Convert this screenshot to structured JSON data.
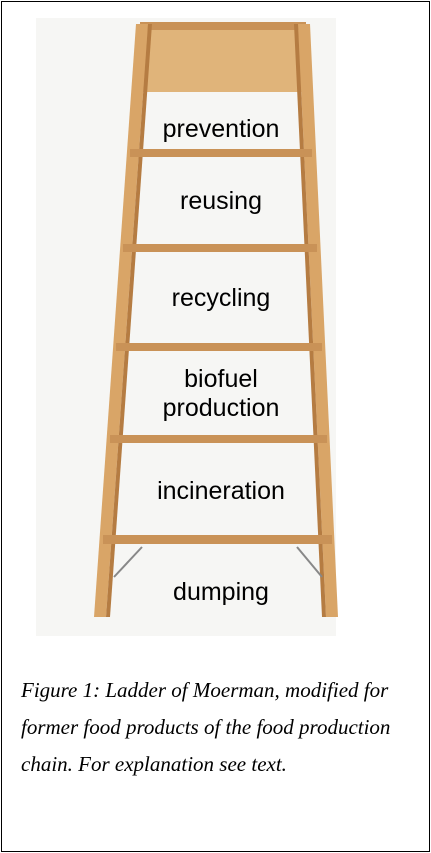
{
  "figure": {
    "labels": [
      "prevention",
      "reusing",
      "recycling",
      "biofuel production",
      "incineration",
      "dumping"
    ],
    "caption": "Figure 1: Ladder of Moerman, modified for former food products of the food production chain. For explanation see text."
  }
}
